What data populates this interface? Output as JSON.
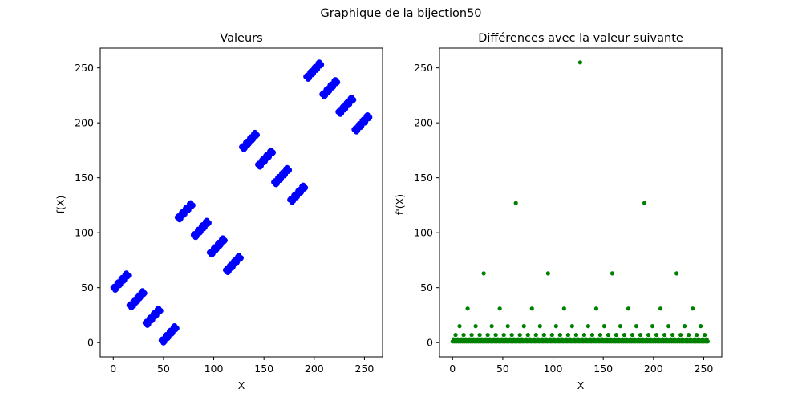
{
  "figure": {
    "title": "Graphique de la bijection50"
  },
  "chart_data": [
    {
      "type": "scatter",
      "title": "Valeurs",
      "xlabel": "X",
      "ylabel": "f(X)",
      "xlim": [
        -13,
        268
      ],
      "ylim": [
        -13,
        268
      ],
      "xticks": [
        0,
        50,
        100,
        150,
        200,
        250
      ],
      "yticks": [
        0,
        50,
        100,
        150,
        200,
        250
      ],
      "grid": false,
      "color": "#0000ff",
      "marker": "circle",
      "x_start": 0,
      "x_end": 255,
      "x_step": 1,
      "y_rule": "f(X) = X XOR 50"
    },
    {
      "type": "scatter",
      "title": "Différences avec la valeur suivante",
      "xlabel": "X",
      "ylabel": "f'(X)",
      "xlim": [
        -13,
        268
      ],
      "ylim": [
        -13,
        268
      ],
      "xticks": [
        0,
        50,
        100,
        150,
        200,
        250
      ],
      "yticks": [
        0,
        50,
        100,
        150,
        200,
        250
      ],
      "grid": false,
      "color": "#008000",
      "marker": "circle",
      "x_start": 0,
      "x_end": 255,
      "x_step": 1,
      "y_rule": "f'(X) = X XOR (X+1)"
    }
  ]
}
